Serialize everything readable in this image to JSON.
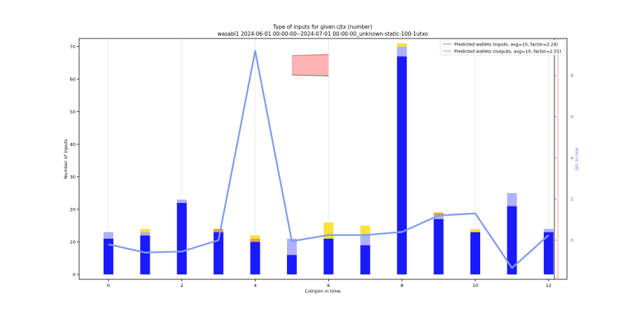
{
  "chart_data": {
    "type": "bar",
    "title": "Type of inputs for given cjtx (number)",
    "subtitle": "wasabi1 2024-06-01 00-00-00--2024-07-01 00-00-00_unknown-static-100-1utxo",
    "xlabel": "Coinjoin in time",
    "ylabel": "Number of inputs",
    "y2label": "btc in mix",
    "xlim": [
      -0.8,
      12.5
    ],
    "ylim": [
      -1.5,
      72.5
    ],
    "y2lim": [
      -1.9,
      9.8
    ],
    "xticks": [
      0,
      2,
      4,
      6,
      8,
      10,
      12
    ],
    "yticks": [
      0,
      10,
      20,
      30,
      40,
      50,
      60,
      70
    ],
    "y2ticks": [
      0,
      2,
      4,
      6,
      8
    ],
    "x": [
      0,
      1,
      2,
      3,
      4,
      5,
      6,
      7,
      8,
      9,
      10,
      11,
      12
    ],
    "series": [
      {
        "color": "#1a1aff",
        "values": [
          11,
          12,
          22,
          13,
          10,
          6,
          11,
          9,
          67,
          17,
          13,
          21,
          13
        ]
      },
      {
        "color": "#b0b0ff",
        "values": [
          2,
          1,
          1,
          0,
          0,
          5,
          0,
          3,
          3,
          1,
          0,
          4,
          1
        ]
      },
      {
        "color": "#e8a33a",
        "values": [
          0,
          0,
          0,
          1,
          1,
          0,
          0,
          0,
          0,
          1,
          0,
          0,
          0
        ]
      },
      {
        "color": "#f9e03a",
        "values": [
          0,
          1,
          0,
          0,
          1,
          0,
          5,
          3,
          1,
          0,
          1,
          0,
          0
        ]
      }
    ],
    "btc_line": {
      "color": "#7f9ee8",
      "values": [
        -0.2,
        -0.6,
        -0.55,
        0.0,
        9.2,
        -0.05,
        0.25,
        0.25,
        0.4,
        1.2,
        1.3,
        -1.35,
        0.25
      ]
    },
    "predicted_band": {
      "x_range": [
        5,
        6
      ],
      "top": [
        67.2,
        67.6
      ],
      "bottom": [
        61.3,
        61.0
      ]
    },
    "legend": {
      "position": "top-right",
      "entries": [
        {
          "label": "Predicted wallets (inputs, avg=10, factor=2.24)",
          "color": "#f08080"
        },
        {
          "label": "Predicted wallets (outputs, avg=10, factor=2.31)",
          "color": "#80d080"
        }
      ]
    },
    "grid_x": true
  }
}
